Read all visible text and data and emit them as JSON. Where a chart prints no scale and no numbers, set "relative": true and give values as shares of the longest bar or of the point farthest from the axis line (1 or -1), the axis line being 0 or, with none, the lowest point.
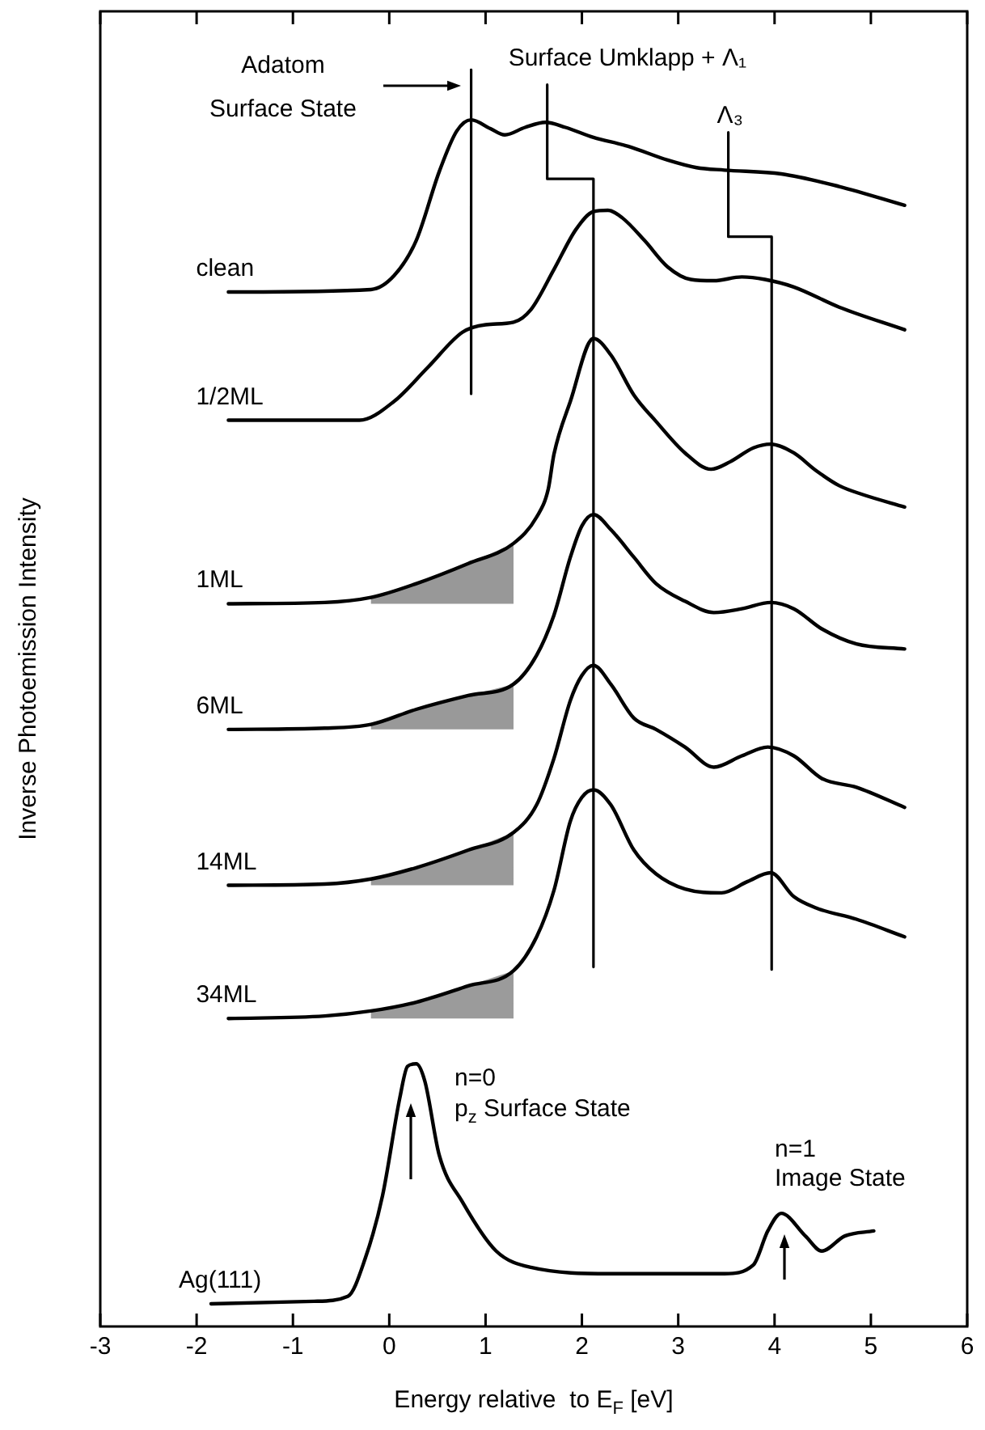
{
  "chart_data": {
    "type": "line",
    "relative": true,
    "xlabel": "Energy relative  to E$_{F}$ [eV]",
    "ylabel": "Inverse Photoemission Intensity",
    "xlim": [
      -3,
      6
    ],
    "xticks": [
      -3,
      -2,
      -1,
      0,
      1,
      2,
      3,
      4,
      5,
      6
    ],
    "marker": "none",
    "series": [
      {
        "name": "clean",
        "color": "#000000",
        "x": [
          -1.67,
          -0.19,
          0.05,
          0.28,
          0.52,
          0.7,
          0.85,
          1.05,
          1.2,
          1.41,
          1.62,
          1.83,
          2.12,
          2.48,
          2.89,
          3.19,
          3.48,
          4.07,
          4.67,
          5.35
        ],
        "values": [
          0.823,
          0.825,
          0.836,
          0.864,
          0.919,
          0.951,
          0.96,
          0.953,
          0.948,
          0.954,
          0.958,
          0.954,
          0.946,
          0.939,
          0.928,
          0.922,
          0.92,
          0.917,
          0.907,
          0.892
        ]
      },
      {
        "name": "1/2ML",
        "color": "#000000",
        "x": [
          -1.67,
          -0.31,
          0.05,
          0.4,
          0.76,
          1.0,
          1.29,
          1.47,
          1.71,
          1.94,
          2.12,
          2.27,
          2.42,
          2.65,
          2.89,
          3.13,
          3.37,
          3.66,
          3.9,
          4.2,
          4.67,
          5.35
        ],
        "values": [
          0.721,
          0.721,
          0.736,
          0.763,
          0.791,
          0.797,
          0.799,
          0.809,
          0.841,
          0.873,
          0.887,
          0.888,
          0.882,
          0.864,
          0.843,
          0.833,
          0.832,
          0.835,
          0.833,
          0.827,
          0.811,
          0.793
        ]
      },
      {
        "name": "1ML",
        "color": "#000000",
        "x": [
          -1.67,
          -0.67,
          -0.19,
          0.28,
          0.82,
          1.29,
          1.53,
          1.65,
          1.71,
          1.88,
          2.12,
          2.3,
          2.54,
          2.77,
          3.07,
          3.34,
          3.54,
          3.78,
          3.96,
          4.2,
          4.43,
          4.67,
          4.91,
          5.35
        ],
        "values": [
          0.575,
          0.576,
          0.58,
          0.591,
          0.607,
          0.623,
          0.644,
          0.666,
          0.694,
          0.736,
          0.786,
          0.773,
          0.741,
          0.72,
          0.695,
          0.682,
          0.688,
          0.699,
          0.702,
          0.695,
          0.681,
          0.669,
          0.662,
          0.652
        ],
        "lower": [
          null,
          null,
          0.575,
          0.575,
          0.575,
          0.575,
          null,
          null,
          null,
          null,
          null,
          null,
          null,
          null,
          null,
          null,
          null,
          null,
          null,
          null,
          null,
          null,
          null,
          null
        ],
        "upper": [
          null,
          null,
          0.58,
          0.591,
          0.607,
          0.623,
          null,
          null,
          null,
          null,
          null,
          null,
          null,
          null,
          null,
          null,
          null,
          null,
          null,
          null,
          null,
          null,
          null,
          null
        ]
      },
      {
        "name": "6ML",
        "color": "#000000",
        "x": [
          -1.67,
          -0.67,
          -0.19,
          0.28,
          0.82,
          1.29,
          1.53,
          1.71,
          1.88,
          2.0,
          2.12,
          2.3,
          2.54,
          2.77,
          3.07,
          3.37,
          3.66,
          3.96,
          4.2,
          4.49,
          4.85,
          5.35
        ],
        "values": [
          0.475,
          0.476,
          0.479,
          0.491,
          0.502,
          0.511,
          0.534,
          0.566,
          0.612,
          0.637,
          0.646,
          0.634,
          0.612,
          0.591,
          0.577,
          0.568,
          0.571,
          0.576,
          0.571,
          0.555,
          0.543,
          0.539
        ],
        "lower": [
          null,
          null,
          0.475,
          0.475,
          0.475,
          0.475,
          null,
          null,
          null,
          null,
          null,
          null,
          null,
          null,
          null,
          null,
          null,
          null,
          null,
          null,
          null,
          null
        ],
        "upper": [
          null,
          null,
          0.479,
          0.491,
          0.502,
          0.511,
          null,
          null,
          null,
          null,
          null,
          null,
          null,
          null,
          null,
          null,
          null,
          null,
          null,
          null,
          null,
          null
        ]
      },
      {
        "name": "14ML",
        "color": "#000000",
        "x": [
          -1.67,
          -0.67,
          -0.19,
          0.28,
          0.82,
          1.29,
          1.53,
          1.71,
          1.88,
          2.0,
          2.12,
          2.3,
          2.54,
          2.77,
          3.07,
          3.37,
          3.66,
          3.93,
          4.2,
          4.49,
          4.85,
          5.35
        ],
        "values": [
          0.351,
          0.352,
          0.356,
          0.365,
          0.379,
          0.393,
          0.415,
          0.452,
          0.498,
          0.518,
          0.526,
          0.511,
          0.484,
          0.475,
          0.461,
          0.445,
          0.454,
          0.461,
          0.454,
          0.436,
          0.429,
          0.413
        ],
        "lower": [
          null,
          null,
          0.351,
          0.351,
          0.351,
          0.351,
          null,
          null,
          null,
          null,
          null,
          null,
          null,
          null,
          null,
          null,
          null,
          null,
          null,
          null,
          null,
          null
        ],
        "upper": [
          null,
          null,
          0.356,
          0.365,
          0.379,
          0.393,
          null,
          null,
          null,
          null,
          null,
          null,
          null,
          null,
          null,
          null,
          null,
          null,
          null,
          null,
          null,
          null
        ]
      },
      {
        "name": "34ML",
        "color": "#000000",
        "x": [
          -1.67,
          -0.67,
          -0.19,
          0.28,
          0.82,
          1.29,
          1.53,
          1.71,
          1.88,
          2.0,
          2.12,
          2.3,
          2.54,
          2.77,
          3.07,
          3.45,
          3.72,
          3.96,
          4.2,
          4.43,
          4.85,
          5.35
        ],
        "values": [
          0.245,
          0.247,
          0.251,
          0.258,
          0.271,
          0.283,
          0.31,
          0.347,
          0.402,
          0.421,
          0.427,
          0.415,
          0.379,
          0.36,
          0.348,
          0.345,
          0.354,
          0.361,
          0.342,
          0.333,
          0.324,
          0.31
        ],
        "lower": [
          null,
          null,
          0.245,
          0.245,
          0.245,
          0.245,
          null,
          null,
          null,
          null,
          null,
          null,
          null,
          null,
          null,
          null,
          null,
          null,
          null,
          null,
          null,
          null
        ],
        "upper": [
          null,
          null,
          0.251,
          0.258,
          0.271,
          0.283,
          null,
          null,
          null,
          null,
          null,
          null,
          null,
          null,
          null,
          null,
          null,
          null,
          null,
          null,
          null,
          null
        ]
      },
      {
        "name": "Ag(111)",
        "color": "#000000",
        "x": [
          -1.85,
          -0.78,
          -0.43,
          -0.25,
          -0.07,
          0.11,
          0.19,
          0.28,
          0.37,
          0.52,
          0.76,
          1.11,
          1.47,
          2.3,
          3.48,
          3.78,
          3.93,
          4.07,
          4.32,
          4.49,
          4.73,
          5.03
        ],
        "values": [
          0.018,
          0.02,
          0.024,
          0.054,
          0.104,
          0.182,
          0.207,
          0.209,
          0.195,
          0.136,
          0.099,
          0.06,
          0.047,
          0.042,
          0.042,
          0.049,
          0.076,
          0.09,
          0.072,
          0.06,
          0.072,
          0.076
        ]
      },
      {
        "type": "line",
        "color": "#000000",
        "x": [
          0.85,
          0.85
        ],
        "values": [
          1.0,
          0.742
        ]
      },
      {
        "type": "line",
        "color": "#000000",
        "x": [
          1.64,
          1.64,
          2.12,
          2.12
        ],
        "values": [
          0.988,
          0.913,
          0.913,
          0.286
        ]
      },
      {
        "type": "line",
        "color": "#000000",
        "x": [
          3.52,
          3.52,
          3.97,
          3.97
        ],
        "values": [
          0.95,
          0.867,
          0.867,
          0.284
        ]
      }
    ],
    "annotations": [
      "Adatom\nSurface State",
      {
        "text": "Surface Umklapp + Λ₁",
        "x": 1.64,
        "y": 0.988
      },
      {
        "text": "Λ₃",
        "x": 3.52,
        "y": 0.95
      },
      "n=0\np$_{z}$ Surface State",
      "n=1\nImage State"
    ]
  }
}
